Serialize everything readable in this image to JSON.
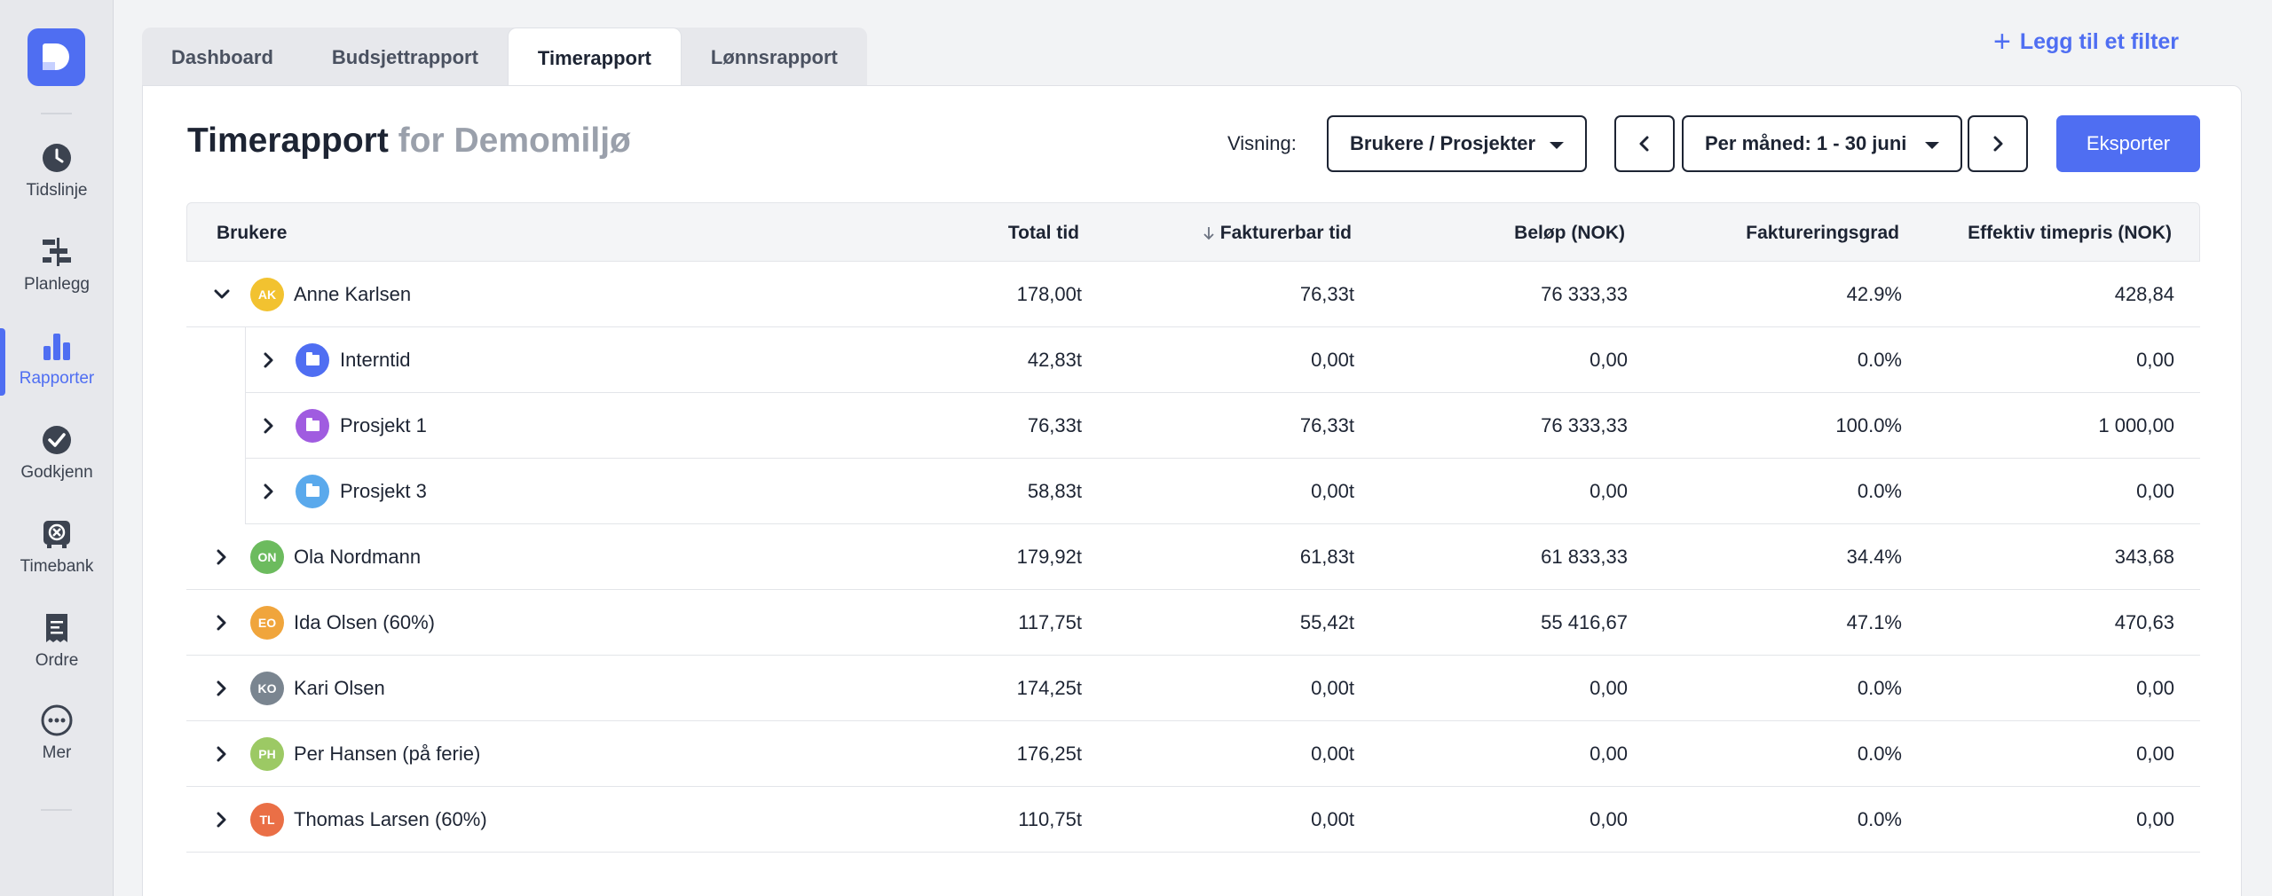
{
  "sidebar": {
    "items": [
      {
        "label": "Tidslinje",
        "icon": "clock-icon"
      },
      {
        "label": "Planlegg",
        "icon": "plan-icon"
      },
      {
        "label": "Rapporter",
        "icon": "bar-chart-icon"
      },
      {
        "label": "Godkjenn",
        "icon": "check-circle-icon"
      },
      {
        "label": "Timebank",
        "icon": "timebank-icon"
      },
      {
        "label": "Ordre",
        "icon": "receipt-icon"
      },
      {
        "label": "Mer",
        "icon": "more-icon"
      }
    ],
    "active_index": 2
  },
  "tabs": [
    "Dashboard",
    "Budsjettrapport",
    "Timerapport",
    "Lønnsrapport"
  ],
  "active_tab": 2,
  "add_filter_label": "Legg til et filter",
  "header": {
    "title": "Timerapport",
    "subtitle": "for Demomiljø",
    "visning_label": "Visning:",
    "view_select": "Brukere / Prosjekter",
    "period_select": "Per måned: 1 - 30 juni",
    "export_label": "Eksporter"
  },
  "table": {
    "columns": [
      "Brukere",
      "Total tid",
      "Fakturerbar tid",
      "Beløp (NOK)",
      "Faktureringsgrad",
      "Effektiv timepris (NOK)"
    ],
    "sort_column": 2,
    "rows": [
      {
        "type": "user",
        "name": "Anne Karlsen",
        "initials": "AK",
        "color": "#f2c230",
        "expanded": true,
        "total": "178,00t",
        "billable": "76,33t",
        "amount": "76 333,33",
        "rate": "42.9%",
        "price": "428,84"
      },
      {
        "type": "project",
        "name": "Interntid",
        "color": "#4f6ef2",
        "total": "42,83t",
        "billable": "0,00t",
        "amount": "0,00",
        "rate": "0.0%",
        "price": "0,00"
      },
      {
        "type": "project",
        "name": "Prosjekt 1",
        "color": "#a05ce0",
        "total": "76,33t",
        "billable": "76,33t",
        "amount": "76 333,33",
        "rate": "100.0%",
        "price": "1 000,00"
      },
      {
        "type": "project",
        "name": "Prosjekt 3",
        "color": "#5aa9ec",
        "total": "58,83t",
        "billable": "0,00t",
        "amount": "0,00",
        "rate": "0.0%",
        "price": "0,00"
      },
      {
        "type": "user",
        "name": "Ola Nordmann",
        "initials": "ON",
        "color": "#6cbb5e",
        "expanded": false,
        "total": "179,92t",
        "billable": "61,83t",
        "amount": "61 833,33",
        "rate": "34.4%",
        "price": "343,68"
      },
      {
        "type": "user",
        "name": "Ida Olsen (60%)",
        "initials": "EO",
        "color": "#f0a53c",
        "expanded": false,
        "total": "117,75t",
        "billable": "55,42t",
        "amount": "55 416,67",
        "rate": "47.1%",
        "price": "470,63"
      },
      {
        "type": "user",
        "name": "Kari Olsen",
        "initials": "KO",
        "color": "#7a8590",
        "expanded": false,
        "total": "174,25t",
        "billable": "0,00t",
        "amount": "0,00",
        "rate": "0.0%",
        "price": "0,00"
      },
      {
        "type": "user",
        "name": "Per Hansen (på ferie)",
        "initials": "PH",
        "color": "#9cc964",
        "expanded": false,
        "total": "176,25t",
        "billable": "0,00t",
        "amount": "0,00",
        "rate": "0.0%",
        "price": "0,00"
      },
      {
        "type": "user",
        "name": "Thomas Larsen (60%)",
        "initials": "TL",
        "color": "#ea6f46",
        "expanded": false,
        "total": "110,75t",
        "billable": "0,00t",
        "amount": "0,00",
        "rate": "0.0%",
        "price": "0,00"
      }
    ]
  }
}
